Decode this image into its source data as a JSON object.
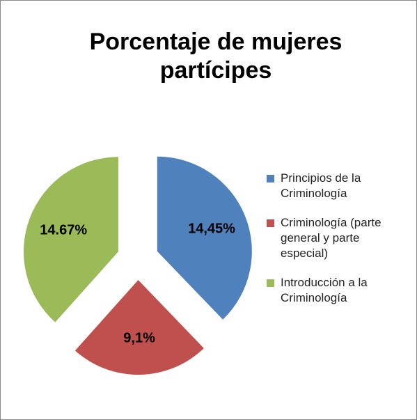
{
  "chart_data": {
    "type": "pie",
    "title": "Porcentaje de mujeres partícipes",
    "categories": [
      "Principios de la Criminología",
      "Criminología (parte general y parte especial)",
      "Introducción a la Criminología"
    ],
    "values": [
      14.45,
      9.1,
      14.67
    ],
    "value_labels": [
      "14,45%",
      "9,1%",
      "14.67%"
    ],
    "colors": [
      "#4f81bd",
      "#c0504d",
      "#9bbb59"
    ]
  }
}
